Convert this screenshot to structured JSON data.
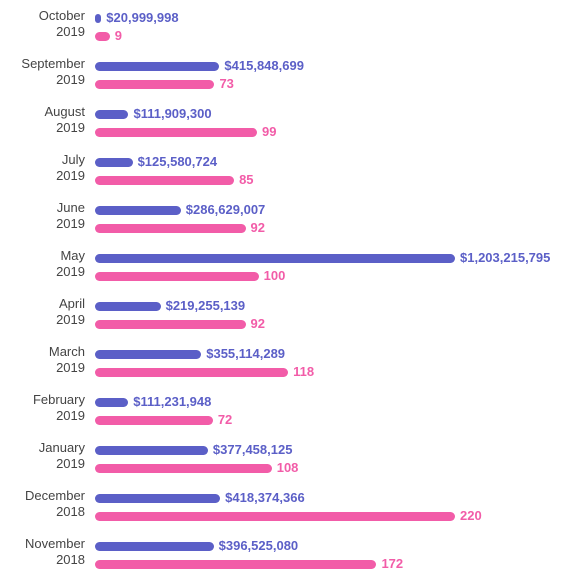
{
  "chart_data": {
    "type": "bar",
    "categories": [
      "October 2019",
      "September 2019",
      "August 2019",
      "July 2019",
      "June 2019",
      "May 2019",
      "April 2019",
      "March 2019",
      "February 2019",
      "January 2019",
      "December 2018",
      "November 2018"
    ],
    "series": [
      {
        "color": "#5b5fc7",
        "values": [
          20999998,
          415848699,
          111909300,
          125580724,
          286629007,
          1203215795,
          219255139,
          355114289,
          111231948,
          377458125,
          418374366,
          396525080
        ],
        "value_labels": [
          "$20,999,998",
          "$415,848,699",
          "$111,909,300",
          "$125,580,724",
          "$286,629,007",
          "$1,203,215,795",
          "$219,255,139",
          "$355,114,289",
          "$111,231,948",
          "$377,458,125",
          "$418,374,366",
          "$396,525,080"
        ]
      },
      {
        "color": "#f25ca8",
        "values": [
          9,
          73,
          99,
          85,
          92,
          100,
          92,
          118,
          72,
          108,
          220,
          172
        ]
      }
    ]
  }
}
